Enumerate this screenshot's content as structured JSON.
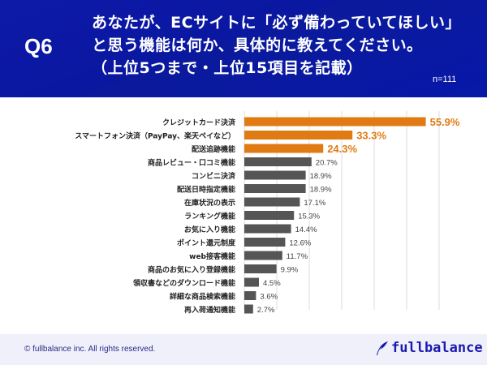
{
  "header": {
    "question_no": "Q6",
    "title_lines": [
      "あなたが、ECサイトに「必ず備わっていてほしい」",
      "と思う機能は何か、具体的に教えてください。",
      "（上位5つまで・上位15項目を記載）"
    ],
    "sample_size": "n=111"
  },
  "chart_data": {
    "type": "bar",
    "orientation": "horizontal",
    "categories": [
      "クレジットカード決済",
      "スマートフォン決済（PayPay、楽天ペイなど）",
      "配送追跡機能",
      "商品レビュー・口コミ機能",
      "コンビニ決済",
      "配送日時指定機能",
      "在庫状況の表示",
      "ランキング機能",
      "お気に入り機能",
      "ポイント還元制度",
      "web接客機能",
      "商品のお気に入り登録機能",
      "領収書などのダウンロード機能",
      "詳細な商品検索機能",
      "再入荷通知機能"
    ],
    "values": [
      55.9,
      33.3,
      24.3,
      20.7,
      18.9,
      18.9,
      17.1,
      15.3,
      14.4,
      12.6,
      11.7,
      9.9,
      4.5,
      3.6,
      2.7
    ],
    "labels": [
      "55.9%",
      "33.3%",
      "24.3%",
      "20.7%",
      "18.9%",
      "18.9%",
      "17.1%",
      "15.3%",
      "14.4%",
      "12.6%",
      "11.7%",
      "9.9%",
      "4.5%",
      "3.6%",
      "2.7%"
    ],
    "highlight_top": 3,
    "xlim": [
      0,
      60
    ],
    "grid": true,
    "colors": {
      "highlight": "#e07b14",
      "normal": "#555555",
      "grid": "#dddddd"
    }
  },
  "footer": {
    "copyright": "© fullbalance inc. All rights reserved.",
    "logo_text": "fullbalance"
  }
}
